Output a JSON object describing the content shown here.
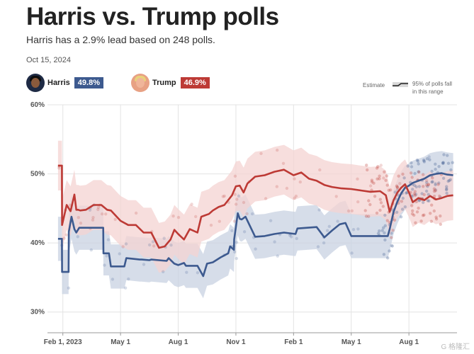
{
  "page": {
    "title": "Harris vs. Trump polls",
    "subtitle": "Harris has a 2.9% lead based on 248 polls.",
    "date": "Oct 15, 2024",
    "watermark": "G 格隆汇"
  },
  "candidates": [
    {
      "name": "Harris",
      "value": "49.8%",
      "color": "#3d5a8f",
      "icon": "harris-portrait"
    },
    {
      "name": "Trump",
      "value": "46.9%",
      "color": "#bd3a35",
      "icon": "trump-portrait"
    }
  ],
  "legend": {
    "estimate": "Estimate",
    "range_line1": "95% of polls fall",
    "range_line2": "in this range"
  },
  "chart_data": {
    "type": "line",
    "x_unit": "month",
    "x_note": "x values are months counted from Jan 2023 (Jan 1, 2023 = 0)",
    "xlim": [
      0.2,
      21.5
    ],
    "ylim": [
      27,
      60
    ],
    "yticks": [
      30,
      40,
      50,
      60
    ],
    "ytick_labels": [
      "30%",
      "40%",
      "50%",
      "60%"
    ],
    "xticks": [
      1,
      4,
      7,
      10,
      13,
      16,
      19
    ],
    "xtick_labels": [
      "Feb 1, 2023",
      "May 1",
      "Aug 1",
      "Nov 1",
      "Feb 1",
      "May 1",
      "Aug 1"
    ],
    "grid": true,
    "series": [
      {
        "name": "Harris",
        "color": "#3d5a8f",
        "band_color": "#c8d1e2",
        "band_half_width": 3.2,
        "x": [
          0.75,
          0.95,
          0.96,
          1.3,
          1.31,
          1.45,
          1.6,
          1.7,
          1.85,
          2.0,
          2.6,
          3.1,
          3.11,
          3.4,
          3.5,
          4.2,
          4.3,
          5.0,
          5.1,
          5.5,
          5.6,
          6.4,
          6.5,
          6.8,
          7.0,
          7.3,
          7.4,
          7.5,
          8.0,
          8.3,
          8.5,
          8.8,
          9.2,
          9.6,
          9.7,
          9.9,
          9.91,
          10.1,
          10.2,
          10.3,
          10.5,
          11.0,
          11.5,
          12.0,
          12.5,
          13.1,
          13.2,
          14.2,
          14.6,
          15.0,
          15.4,
          15.7,
          16.0,
          16.6,
          17.6,
          17.9,
          18.0,
          18.2,
          18.4,
          18.6,
          18.8,
          19.0,
          19.2,
          19.5,
          19.8,
          20.1,
          20.4,
          20.7,
          21.0,
          21.3
        ],
        "y": [
          40.6,
          40.6,
          35.8,
          35.8,
          41.6,
          43.8,
          42.0,
          41.5,
          42.2,
          42.2,
          42.2,
          42.2,
          38.5,
          38.5,
          36.6,
          36.6,
          37.8,
          37.6,
          37.6,
          37.5,
          37.6,
          37.4,
          37.8,
          37.0,
          36.8,
          37.1,
          36.7,
          36.7,
          36.7,
          35.2,
          37.0,
          37.2,
          37.9,
          38.5,
          39.5,
          39.0,
          40.5,
          44.3,
          43.5,
          43.4,
          43.8,
          40.9,
          41.0,
          41.3,
          41.5,
          41.3,
          42.1,
          42.3,
          40.8,
          41.8,
          42.7,
          42.9,
          41.0,
          41.0,
          41.0,
          41.0,
          42.0,
          44.5,
          46.0,
          47.2,
          48.0,
          48.3,
          48.7,
          49.0,
          49.3,
          49.8,
          50.0,
          50.1,
          49.9,
          49.8
        ]
      },
      {
        "name": "Trump",
        "color": "#bd3a35",
        "band_color": "#f4d3d2",
        "band_half_width": 3.6,
        "x": [
          0.75,
          0.95,
          0.96,
          1.2,
          1.4,
          1.6,
          1.7,
          1.8,
          1.9,
          2.2,
          2.6,
          3.0,
          3.3,
          3.5,
          4.0,
          4.4,
          4.8,
          5.2,
          5.6,
          6.0,
          6.3,
          6.6,
          6.8,
          7.0,
          7.3,
          7.6,
          8.0,
          8.2,
          8.4,
          8.6,
          8.8,
          9.1,
          9.4,
          9.8,
          10.0,
          10.2,
          10.4,
          10.6,
          11.0,
          11.5,
          12.0,
          12.5,
          13.0,
          13.4,
          13.8,
          14.2,
          14.6,
          15.0,
          15.5,
          16.0,
          16.5,
          17.0,
          17.5,
          17.8,
          18.0,
          18.2,
          18.4,
          18.6,
          18.8,
          19.0,
          19.2,
          19.5,
          19.8,
          20.1,
          20.4,
          20.7,
          21.0,
          21.3
        ],
        "y": [
          51.2,
          51.2,
          42.6,
          45.5,
          44.6,
          47.0,
          44.8,
          44.8,
          44.7,
          44.8,
          45.5,
          45.5,
          44.8,
          44.7,
          43.2,
          42.6,
          42.6,
          41.5,
          41.5,
          39.3,
          39.5,
          40.5,
          41.9,
          41.3,
          40.5,
          42.0,
          41.5,
          43.8,
          44.0,
          44.2,
          44.7,
          45.2,
          45.5,
          46.9,
          48.2,
          48.3,
          47.3,
          48.6,
          49.6,
          49.8,
          50.3,
          50.6,
          49.8,
          50.2,
          49.3,
          49.0,
          48.4,
          48.1,
          47.9,
          47.8,
          47.6,
          47.4,
          47.5,
          46.9,
          44.5,
          46.2,
          47.3,
          48.0,
          48.5,
          47.3,
          45.9,
          46.5,
          46.2,
          46.8,
          46.3,
          46.5,
          46.8,
          46.9
        ]
      }
    ]
  }
}
